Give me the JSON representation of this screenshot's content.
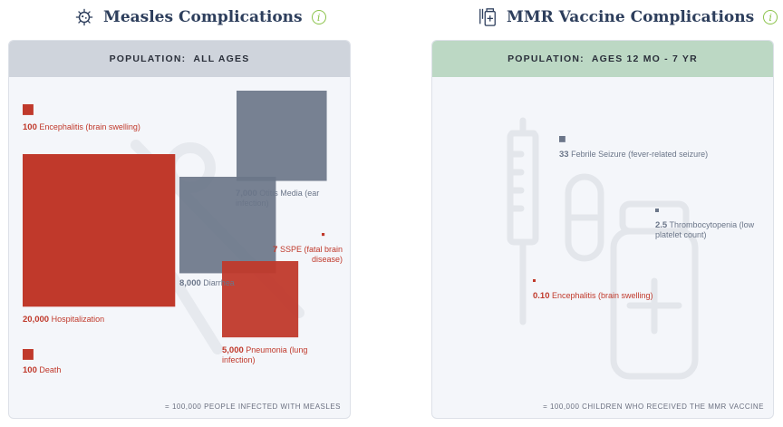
{
  "left_panel": {
    "title": "Measles Complications",
    "header": "POPULATION:",
    "header_value": "ALL AGES",
    "footnote": "= 100,000 PEOPLE INFECTED WITH MEASLES"
  },
  "right_panel": {
    "title": "MMR Vaccine Complications",
    "header": "POPULATION:",
    "header_value": "AGES 12 MO - 7 YR",
    "footnote": "= 100,000 CHILDREN WHO RECEIVED THE MMR VACCINE"
  },
  "colors": {
    "measles_red": "#c0392b",
    "slate": "#6b7689",
    "info_green": "#8bc34a"
  },
  "chart_data": [
    {
      "type": "proportional-area",
      "title": "Measles Complications",
      "population": "ALL AGES",
      "unit_note": "= 100,000 PEOPLE INFECTED WITH MEASLES",
      "items": [
        {
          "value": 100,
          "value_label": "100",
          "label": "Encephalitis (brain swelling)",
          "color": "#c0392b"
        },
        {
          "value": 20000,
          "value_label": "20,000",
          "label": "Hospitalization",
          "color": "#c0392b"
        },
        {
          "value": 100,
          "value_label": "100",
          "label": "Death",
          "color": "#c0392b"
        },
        {
          "value": 8000,
          "value_label": "8,000",
          "label": "Diarrhea",
          "color": "#6b7689"
        },
        {
          "value": 7000,
          "value_label": "7,000",
          "label": "Otitis Media (ear infection)",
          "color": "#6b7689"
        },
        {
          "value": 7,
          "value_label": "7",
          "label": "SSPE (fatal brain disease)",
          "color": "#c0392b"
        },
        {
          "value": 5000,
          "value_label": "5,000",
          "label": "Pneumonia (lung infection)",
          "color": "#c0392b"
        }
      ]
    },
    {
      "type": "proportional-area",
      "title": "MMR Vaccine Complications",
      "population": "AGES 12 MO - 7 YR",
      "unit_note": "= 100,000 CHILDREN WHO RECEIVED THE MMR VACCINE",
      "items": [
        {
          "value": 33,
          "value_label": "33",
          "label": "Febrile Seizure (fever-related seizure)",
          "color": "#6b7689"
        },
        {
          "value": 2.5,
          "value_label": "2.5",
          "label": "Thrombocytopenia (low platelet count)",
          "color": "#6b7689"
        },
        {
          "value": 0.1,
          "value_label": "0.10",
          "label": "Encephalitis (brain swelling)",
          "color": "#c0392b"
        }
      ]
    }
  ]
}
